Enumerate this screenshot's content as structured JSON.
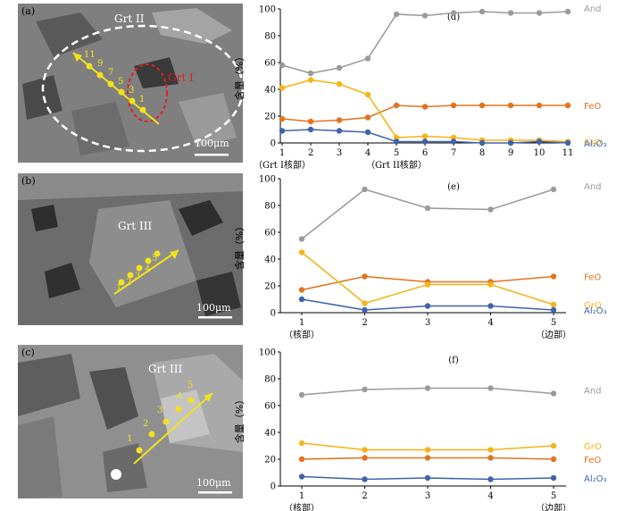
{
  "photos": [
    {
      "letter": "(a)",
      "scale": "100μm",
      "labels": [
        "Grt II",
        "Grt I"
      ],
      "point_labels": [
        "11",
        "9",
        "7",
        "5",
        "3",
        "1"
      ]
    },
    {
      "letter": "(b)",
      "scale": "100μm",
      "labels": [
        "Grt III"
      ],
      "point_labels": [
        "1",
        "2",
        "3",
        "4",
        "5"
      ]
    },
    {
      "letter": "(c)",
      "scale": "100μm",
      "labels": [
        "Grt III"
      ],
      "point_labels": [
        "1",
        "2",
        "3",
        "4",
        "5"
      ]
    }
  ],
  "colors": {
    "and": "#9b9b9b",
    "feo": "#e2731f",
    "gro": "#f5b418",
    "al2o3": "#3f63ad",
    "annot_yellow": "#f2e21c",
    "annot_red": "#e02020"
  },
  "chart_data": [
    {
      "panel": "(d)",
      "type": "line",
      "ylabel": "含量（%）",
      "ylim": [
        0,
        100
      ],
      "yticks": [
        0,
        20,
        40,
        60,
        80,
        100
      ],
      "x": [
        1,
        2,
        3,
        4,
        5,
        6,
        7,
        8,
        9,
        10,
        11
      ],
      "bottom_labels": [
        {
          "x": 1,
          "text": "（Grt I核部）"
        },
        {
          "x": 5,
          "text": "（Grt II核部）"
        }
      ],
      "series": [
        {
          "key": "and",
          "name": "And",
          "values": [
            58,
            52,
            56,
            63,
            96,
            95,
            97,
            98,
            97,
            97,
            98
          ]
        },
        {
          "key": "feo",
          "name": "FeO",
          "values": [
            18,
            16,
            17,
            19,
            28,
            27,
            28,
            28,
            28,
            28,
            28
          ]
        },
        {
          "key": "gro",
          "name": "GrO",
          "values": [
            41,
            47,
            44,
            36,
            4,
            5,
            4,
            2,
            2,
            2,
            1
          ]
        },
        {
          "key": "al2o3",
          "name": "Al₂O₃",
          "values": [
            9,
            10,
            9,
            8,
            1,
            1,
            1,
            0,
            0,
            1,
            0
          ]
        }
      ]
    },
    {
      "panel": "(e)",
      "type": "line",
      "ylabel": "含量（%）",
      "ylim": [
        0,
        100
      ],
      "yticks": [
        0,
        20,
        40,
        60,
        80,
        100
      ],
      "x": [
        1,
        2,
        3,
        4,
        5
      ],
      "bottom_labels": [
        {
          "x": 1,
          "text": "（核部）"
        },
        {
          "x": 5,
          "text": "（边部）"
        }
      ],
      "series": [
        {
          "key": "and",
          "name": "And",
          "values": [
            55,
            92,
            78,
            77,
            92
          ]
        },
        {
          "key": "feo",
          "name": "FeO",
          "values": [
            17,
            27,
            23,
            23,
            27
          ]
        },
        {
          "key": "gro",
          "name": "GrO",
          "values": [
            45,
            7,
            21,
            21,
            6
          ]
        },
        {
          "key": "al2o3",
          "name": "Al₂O₃",
          "values": [
            10,
            2,
            5,
            5,
            2
          ]
        }
      ]
    },
    {
      "panel": "(f)",
      "type": "line",
      "ylabel": "含量（%）",
      "ylim": [
        0,
        100
      ],
      "yticks": [
        0,
        20,
        40,
        60,
        80,
        100
      ],
      "x": [
        1,
        2,
        3,
        4,
        5
      ],
      "bottom_labels": [
        {
          "x": 1,
          "text": "（核部）"
        },
        {
          "x": 5,
          "text": "（边部）"
        }
      ],
      "series": [
        {
          "key": "and",
          "name": "And",
          "values": [
            68,
            72,
            73,
            73,
            69
          ]
        },
        {
          "key": "gro",
          "name": "GrO",
          "values": [
            32,
            27,
            27,
            27,
            30
          ]
        },
        {
          "key": "feo",
          "name": "FeO",
          "values": [
            20,
            21,
            21,
            21,
            20
          ]
        },
        {
          "key": "al2o3",
          "name": "Al₂O₃",
          "values": [
            7,
            5,
            6,
            5,
            6
          ]
        }
      ]
    }
  ]
}
